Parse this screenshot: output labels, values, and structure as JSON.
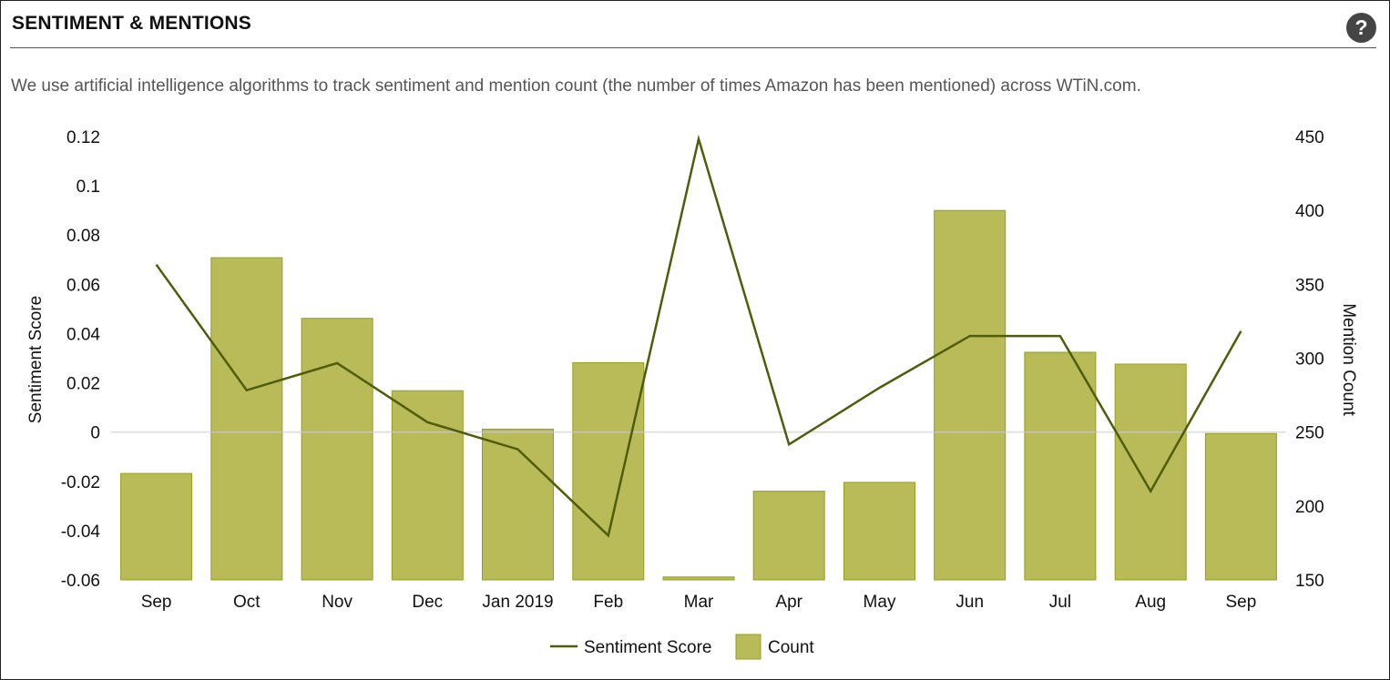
{
  "panel": {
    "title": "SENTIMENT & MENTIONS",
    "help_label": "?",
    "description": "We use artificial intelligence algorithms to track sentiment and mention count (the number of times Amazon has been mentioned) across WTiN.com."
  },
  "colors": {
    "bar_fill": "#b8bb58",
    "bar_stroke": "#93a01c",
    "line": "#4e5d0b",
    "zero_line": "#cccccc",
    "help_button": "#454545"
  },
  "chart_data": {
    "type": "bar",
    "title": "",
    "categories": [
      "Sep",
      "Oct",
      "Nov",
      "Dec",
      "Jan 2019",
      "Feb",
      "Mar",
      "Apr",
      "May",
      "Jun",
      "Jul",
      "Aug",
      "Sep"
    ],
    "series": [
      {
        "name": "Count",
        "type": "bar",
        "axis": "right",
        "values": [
          222,
          368,
          327,
          278,
          252,
          297,
          152,
          210,
          216,
          400,
          304,
          296,
          249
        ]
      },
      {
        "name": "Sentiment Score",
        "type": "line",
        "axis": "left",
        "values": [
          0.068,
          0.017,
          0.028,
          0.004,
          -0.007,
          -0.042,
          0.119,
          -0.005,
          0.018,
          0.039,
          0.039,
          -0.024,
          0.041
        ]
      }
    ],
    "ylabel": "Sentiment Score",
    "ylim": [
      -0.06,
      0.12
    ],
    "yticks": [
      "-0.06",
      "-0.04",
      "-0.02",
      "0",
      "0.02",
      "0.04",
      "0.06",
      "0.08",
      "0.1",
      "0.12"
    ],
    "y2label": "Mention Count",
    "y2lim": [
      150,
      450
    ],
    "y2ticks": [
      "150",
      "200",
      "250",
      "300",
      "350",
      "400",
      "450"
    ],
    "legend": {
      "position": "bottom-center",
      "items": [
        "Sentiment Score",
        "Count"
      ]
    },
    "grid": false
  }
}
